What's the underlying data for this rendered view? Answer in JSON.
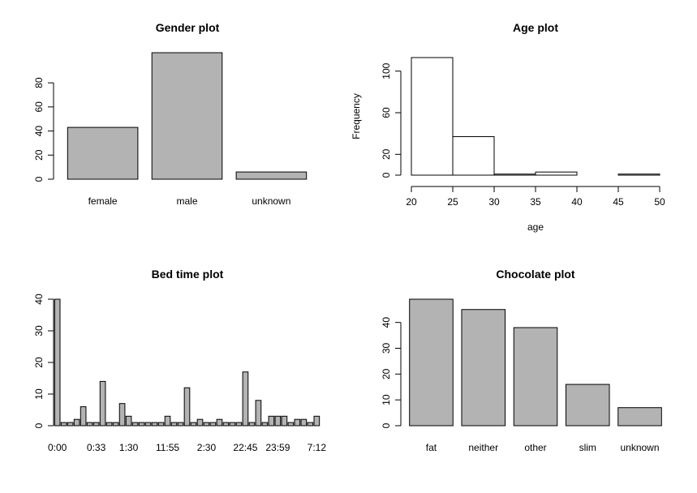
{
  "chart_data": [
    {
      "type": "bar",
      "title": "Gender plot",
      "categories": [
        "female",
        "male",
        "unknown"
      ],
      "values": [
        43,
        105,
        6
      ],
      "ylim": [
        0,
        105
      ],
      "yticks": [
        0,
        20,
        40,
        60,
        80
      ]
    },
    {
      "type": "histogram",
      "title": "Age plot",
      "xlabel": "age",
      "ylabel": "Frequency",
      "bins": [
        [
          20,
          25
        ],
        [
          25,
          30
        ],
        [
          30,
          35
        ],
        [
          35,
          40
        ],
        [
          40,
          45
        ],
        [
          45,
          50
        ]
      ],
      "values": [
        113,
        37,
        1,
        3,
        0,
        1
      ],
      "xlim": [
        20,
        50
      ],
      "ylim": [
        0,
        113
      ],
      "xticks": [
        20,
        25,
        30,
        35,
        40,
        45,
        50
      ],
      "yticks": [
        0,
        20,
        60,
        100
      ]
    },
    {
      "type": "bar",
      "title": "Bed time plot",
      "tick_labels": [
        "0:00",
        "0:33",
        "1:30",
        "11:55",
        "2:30",
        "22:45",
        "23:59",
        "7:12"
      ],
      "values": [
        40,
        1,
        1,
        2,
        6,
        1,
        1,
        14,
        1,
        1,
        7,
        3,
        1,
        1,
        1,
        1,
        1,
        3,
        1,
        1,
        12,
        1,
        2,
        1,
        1,
        2,
        1,
        1,
        1,
        17,
        1,
        8,
        1,
        3,
        3,
        3,
        1,
        2,
        2,
        1,
        3
      ],
      "ylim": [
        0,
        40
      ],
      "yticks": [
        0,
        10,
        20,
        30,
        40
      ]
    },
    {
      "type": "bar",
      "title": "Chocolate plot",
      "categories": [
        "fat",
        "neither",
        "other",
        "slim",
        "unknown"
      ],
      "values": [
        49,
        45,
        38,
        16,
        7
      ],
      "ylim": [
        0,
        49
      ],
      "yticks": [
        0,
        10,
        20,
        30,
        40
      ]
    }
  ]
}
